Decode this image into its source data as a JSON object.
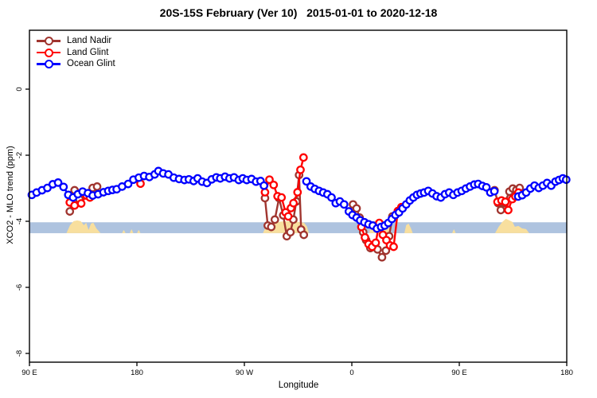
{
  "title": "20S-15S February (Ver 10)   2015-01-01 to 2020-12-18",
  "legend": {
    "items": [
      {
        "label": "Land Nadir",
        "color": "#A0352F"
      },
      {
        "label": "Land Glint",
        "color": "#FF0000"
      },
      {
        "label": "Ocean Glint",
        "color": "#0000FF"
      }
    ]
  },
  "axes": {
    "x_label": "Longitude",
    "y_label": "XCO2 - MLO trend (ppm)",
    "x_ticks": [
      {
        "pos": 90,
        "label": "90 E"
      },
      {
        "pos": 180,
        "label": "180"
      },
      {
        "pos": 270,
        "label": "90 W"
      },
      {
        "pos": 360,
        "label": "0"
      },
      {
        "pos": 450,
        "label": "90 E"
      },
      {
        "pos": 540,
        "label": "180"
      }
    ],
    "y_ticks": [
      {
        "val": 0,
        "label": "0"
      },
      {
        "val": -2,
        "label": "-2"
      },
      {
        "val": -4,
        "label": "-4"
      },
      {
        "val": -6,
        "label": "-6"
      },
      {
        "val": -8,
        "label": "-8"
      }
    ]
  },
  "chart_data": {
    "type": "line",
    "title": "20S-15S February (Ver 10)   2015-01-01 to 2020-12-18",
    "xlabel": "Longitude",
    "ylabel": "XCO2 - MLO trend (ppm)",
    "x_axis_note": "x is position along a wrapped longitude axis, degrees from 90E start (90=90E, 180=180, 270=90W, 360=0, 450=90E, 540=180)",
    "xlim": [
      90,
      540
    ],
    "ylim": [
      -8.27,
      1.78
    ],
    "grid": false,
    "legend_position": "top-left",
    "marker": "open-circle",
    "band": {
      "name": "reference-band",
      "y_top": -4.03,
      "y_bottom": -4.36,
      "color": "#AEC3DF"
    },
    "land_shading": {
      "color": "#F8DF9E",
      "note": "tan bumps along band mark land longitudes; height in px above band bottom",
      "bumps": [
        [
          [
            121,
            0
          ],
          [
            124,
            10
          ],
          [
            127,
            15
          ],
          [
            130,
            16
          ],
          [
            133,
            15
          ],
          [
            135.5,
            10
          ],
          [
            137.5,
            13
          ],
          [
            139.5,
            4
          ],
          [
            141.5,
            12
          ],
          [
            143.5,
            13
          ],
          [
            146,
            6
          ],
          [
            149.5,
            0
          ]
        ],
        [
          [
            167.5,
            0
          ],
          [
            169,
            4
          ],
          [
            170.5,
            0
          ]
        ],
        [
          [
            174,
            0
          ],
          [
            175.5,
            5
          ],
          [
            177,
            0
          ]
        ],
        [
          [
            180,
            0
          ],
          [
            181.5,
            4
          ],
          [
            183,
            0
          ]
        ],
        [
          [
            285.5,
            0
          ],
          [
            288,
            8
          ],
          [
            292,
            13
          ],
          [
            298,
            14
          ],
          [
            304,
            15
          ],
          [
            310,
            15
          ],
          [
            316,
            14
          ],
          [
            320,
            13
          ],
          [
            322.5,
            8
          ],
          [
            324,
            0
          ]
        ],
        [
          [
            374.5,
            0
          ],
          [
            376.5,
            12
          ],
          [
            380,
            16
          ],
          [
            384,
            16
          ],
          [
            387.5,
            15
          ],
          [
            390.5,
            10
          ],
          [
            393,
            0
          ]
        ],
        [
          [
            404,
            0
          ],
          [
            405.5,
            10
          ],
          [
            407.5,
            12
          ],
          [
            409.5,
            6
          ],
          [
            411,
            0
          ]
        ],
        [
          [
            444,
            0
          ],
          [
            445.5,
            5
          ],
          [
            447,
            0
          ]
        ],
        [
          [
            480,
            0
          ],
          [
            483,
            8
          ],
          [
            486,
            14
          ],
          [
            489,
            18
          ],
          [
            492,
            16
          ],
          [
            494.5,
            14
          ],
          [
            496.5,
            8
          ],
          [
            499.5,
            9
          ],
          [
            502.5,
            6
          ],
          [
            506,
            5
          ],
          [
            508.5,
            0
          ]
        ]
      ]
    },
    "series": [
      {
        "name": "Land Nadir",
        "color": "#A0352F",
        "segments": [
          [
            [
              123.8,
              -3.7
            ],
            [
              127.8,
              -3.06
            ],
            [
              131.8,
              -3.33
            ],
            [
              136.7,
              -3.18
            ],
            [
              142.9,
              -2.99
            ],
            [
              146.7,
              -2.95
            ]
          ],
          [
            [
              287.3,
              -3.3
            ],
            [
              289.6,
              -4.13
            ],
            [
              292.5,
              -4.17
            ],
            [
              295.5,
              -3.95
            ],
            [
              299,
              -3.3
            ],
            [
              302.5,
              -3.82
            ],
            [
              305.5,
              -4.45
            ],
            [
              308.5,
              -4.33
            ],
            [
              311,
              -3.95
            ],
            [
              313.5,
              -3.4
            ],
            [
              315.8,
              -2.6
            ],
            [
              317.5,
              -4.25
            ],
            [
              319.8,
              -4.41
            ]
          ],
          [
            [
              361,
              -3.49
            ],
            [
              364,
              -3.61
            ],
            [
              366.5,
              -3.89
            ],
            [
              369.5,
              -4.33
            ],
            [
              372,
              -4.57
            ],
            [
              375.5,
              -4.81
            ],
            [
              378.5,
              -4.73
            ],
            [
              381.5,
              -4.85
            ],
            [
              385.3,
              -5.09
            ],
            [
              388.5,
              -4.89
            ],
            [
              391.3,
              -4.45
            ],
            [
              394,
              -3.85
            ]
          ],
          [
            [
              479.5,
              -3.06
            ],
            [
              482.5,
              -3.45
            ],
            [
              484.8,
              -3.66
            ],
            [
              488,
              -3.45
            ],
            [
              492,
              -3.1
            ],
            [
              494.8,
              -3.01
            ],
            [
              497.8,
              -3.05
            ],
            [
              500.5,
              -2.99
            ]
          ]
        ]
      },
      {
        "name": "Land Glint",
        "color": "#FF0000",
        "segments": [
          [
            [
              123.8,
              -3.43
            ],
            [
              127.8,
              -3.52
            ],
            [
              133.3,
              -3.46
            ],
            [
              137.8,
              -3.22
            ],
            [
              140.7,
              -3.28
            ]
          ],
          [
            [
              183,
              -2.86
            ]
          ],
          [
            [
              287.3,
              -3.12
            ],
            [
              291,
              -2.74
            ],
            [
              294.5,
              -2.9
            ],
            [
              297.8,
              -3.24
            ],
            [
              301.1,
              -3.28
            ],
            [
              304.5,
              -3.73
            ],
            [
              306.7,
              -3.85
            ],
            [
              309,
              -3.6
            ],
            [
              311.1,
              -3.45
            ],
            [
              314.5,
              -3.12
            ],
            [
              317,
              -2.44
            ],
            [
              319.5,
              -2.07
            ]
          ],
          [
            [
              368,
              -4.17
            ],
            [
              371,
              -4.49
            ],
            [
              374,
              -4.69
            ],
            [
              377,
              -4.77
            ],
            [
              380,
              -4.65
            ],
            [
              383,
              -4.05
            ],
            [
              386,
              -4.41
            ],
            [
              389,
              -4.57
            ],
            [
              392,
              -4.73
            ],
            [
              395,
              -4.77
            ],
            [
              398.5,
              -3.69
            ],
            [
              401.5,
              -3.57
            ]
          ],
          [
            [
              482,
              -3.41
            ],
            [
              485.3,
              -3.37
            ],
            [
              488.6,
              -3.41
            ],
            [
              491,
              -3.66
            ],
            [
              494.3,
              -3.33
            ],
            [
              497,
              -3.25
            ],
            [
              499.5,
              -3.13
            ]
          ]
        ]
      },
      {
        "name": "Ocean Glint",
        "color": "#0000FF",
        "segments": [
          [
            [
              92,
              -3.2
            ],
            [
              96,
              -3.13
            ],
            [
              100.5,
              -3.06
            ],
            [
              105,
              -2.99
            ],
            [
              109.5,
              -2.88
            ],
            [
              114,
              -2.83
            ],
            [
              118.5,
              -2.96
            ],
            [
              122.5,
              -3.2
            ],
            [
              126.5,
              -3.28
            ],
            [
              130.5,
              -3.18
            ],
            [
              134.5,
              -3.1
            ],
            [
              139,
              -3.15
            ],
            [
              143,
              -3.22
            ],
            [
              147.5,
              -3.18
            ],
            [
              152,
              -3.12
            ],
            [
              156,
              -3.08
            ],
            [
              159.5,
              -3.05
            ],
            [
              163.1,
              -3.03
            ],
            [
              167.6,
              -2.95
            ],
            [
              172.7,
              -2.87
            ],
            [
              177.1,
              -2.74
            ],
            [
              181.6,
              -2.68
            ],
            [
              186,
              -2.63
            ],
            [
              190.4,
              -2.66
            ],
            [
              194.9,
              -2.58
            ],
            [
              198,
              -2.48
            ],
            [
              202,
              -2.55
            ],
            [
              206.4,
              -2.58
            ],
            [
              210.9,
              -2.68
            ],
            [
              215.3,
              -2.72
            ],
            [
              219.8,
              -2.75
            ],
            [
              223.5,
              -2.73
            ],
            [
              227.5,
              -2.78
            ],
            [
              230.9,
              -2.7
            ],
            [
              234.7,
              -2.8
            ],
            [
              238.7,
              -2.84
            ],
            [
              242.7,
              -2.73
            ],
            [
              246.5,
              -2.67
            ],
            [
              249.8,
              -2.7
            ],
            [
              253.8,
              -2.65
            ],
            [
              257.5,
              -2.7
            ],
            [
              261.3,
              -2.67
            ],
            [
              265.3,
              -2.75
            ],
            [
              268.7,
              -2.7
            ],
            [
              272,
              -2.75
            ],
            [
              276,
              -2.72
            ],
            [
              279.8,
              -2.8
            ],
            [
              283.5,
              -2.78
            ],
            [
              286.4,
              -2.92
            ]
          ],
          [
            [
              322,
              -2.79
            ],
            [
              325.5,
              -2.95
            ],
            [
              329,
              -3.02
            ],
            [
              332.5,
              -3.08
            ],
            [
              336,
              -3.13
            ],
            [
              339.5,
              -3.18
            ],
            [
              343,
              -3.28
            ],
            [
              346.5,
              -3.45
            ],
            [
              350,
              -3.4
            ],
            [
              353.5,
              -3.49
            ],
            [
              357.5,
              -3.7
            ],
            [
              360.5,
              -3.81
            ],
            [
              364,
              -3.89
            ],
            [
              367,
              -3.97
            ],
            [
              370.5,
              -4.03
            ],
            [
              374,
              -4.09
            ],
            [
              377.5,
              -4.13
            ],
            [
              381,
              -4.22
            ],
            [
              384.5,
              -4.17
            ],
            [
              387.5,
              -4.13
            ],
            [
              390.5,
              -4.05
            ],
            [
              393.5,
              -3.93
            ],
            [
              396.5,
              -3.81
            ],
            [
              399.5,
              -3.73
            ],
            [
              402.5,
              -3.61
            ],
            [
              405.5,
              -3.49
            ],
            [
              408.5,
              -3.37
            ],
            [
              411.5,
              -3.28
            ],
            [
              414.5,
              -3.2
            ],
            [
              417.5,
              -3.16
            ],
            [
              420.5,
              -3.13
            ],
            [
              424,
              -3.08
            ],
            [
              427.5,
              -3.16
            ],
            [
              431,
              -3.24
            ],
            [
              434.5,
              -3.28
            ],
            [
              438,
              -3.18
            ],
            [
              441.5,
              -3.13
            ],
            [
              445,
              -3.2
            ],
            [
              448.5,
              -3.13
            ],
            [
              452,
              -3.08
            ],
            [
              455.5,
              -3.01
            ],
            [
              459,
              -2.95
            ],
            [
              462.5,
              -2.89
            ],
            [
              465.8,
              -2.87
            ],
            [
              469.3,
              -2.93
            ],
            [
              472.7,
              -2.97
            ],
            [
              476,
              -3.13
            ],
            [
              479.3,
              -3.09
            ]
          ],
          [
            [
              499.3,
              -3.25
            ],
            [
              502.7,
              -3.21
            ],
            [
              506,
              -3.13
            ],
            [
              509.5,
              -3.01
            ],
            [
              513,
              -2.92
            ],
            [
              516.5,
              -2.99
            ],
            [
              520,
              -2.92
            ],
            [
              523.5,
              -2.84
            ],
            [
              527,
              -2.92
            ],
            [
              530.5,
              -2.8
            ],
            [
              533.5,
              -2.75
            ],
            [
              536.7,
              -2.7
            ],
            [
              539.5,
              -2.74
            ]
          ]
        ]
      }
    ]
  }
}
